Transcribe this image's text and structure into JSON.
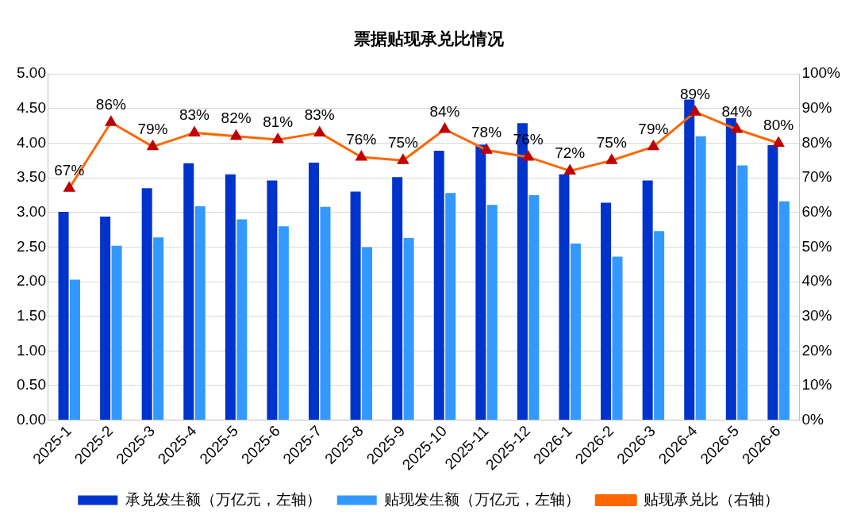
{
  "chart_data": {
    "type": "bar",
    "title": "票据贴现承兑比情况",
    "categories": [
      "2025-1",
      "2025-2",
      "2025-3",
      "2025-4",
      "2025-5",
      "2025-6",
      "2025-7",
      "2025-8",
      "2025-9",
      "2025-10",
      "2025-11",
      "2025-12",
      "2026-1",
      "2026-2",
      "2026-3",
      "2026-4",
      "2026-5",
      "2026-6"
    ],
    "series": [
      {
        "name": "承兑发生额（万亿元，左轴）",
        "color": "#0033cc",
        "values": [
          3.01,
          2.94,
          3.35,
          3.71,
          3.55,
          3.46,
          3.72,
          3.3,
          3.51,
          3.89,
          3.98,
          4.29,
          3.55,
          3.14,
          3.46,
          4.63,
          4.36,
          3.97
        ]
      },
      {
        "name": "贴现发生额（万亿元，左轴）",
        "color": "#3399ff",
        "values": [
          2.03,
          2.52,
          2.64,
          3.09,
          2.9,
          2.8,
          3.08,
          2.5,
          2.63,
          3.28,
          3.11,
          3.25,
          2.55,
          2.36,
          2.73,
          4.1,
          3.68,
          3.16
        ]
      },
      {
        "name": "贴现承兑比（右轴）",
        "type": "line",
        "axis": "y2",
        "color": "#ff6600",
        "marker": "triangle",
        "values": [
          67,
          86,
          79,
          83,
          82,
          81,
          83,
          76,
          75,
          84,
          78,
          76,
          72,
          75,
          79,
          89,
          84,
          80
        ],
        "value_labels": [
          "67%",
          "86%",
          "79%",
          "83%",
          "82%",
          "81%",
          "83%",
          "76%",
          "75%",
          "84%",
          "78%",
          "76%",
          "72%",
          "75%",
          "79%",
          "89%",
          "84%",
          "80%"
        ]
      }
    ],
    "ylim": [
      0,
      5
    ],
    "yticks": [
      {
        "value": 0,
        "label": "0.00"
      },
      {
        "value": 0.5,
        "label": "0.50"
      },
      {
        "value": 1,
        "label": "1.00"
      },
      {
        "value": 1.5,
        "label": "1.50"
      },
      {
        "value": 2,
        "label": "2.00"
      },
      {
        "value": 2.5,
        "label": "2.50"
      },
      {
        "value": 3,
        "label": "3.00"
      },
      {
        "value": 3.5,
        "label": "3.50"
      },
      {
        "value": 4,
        "label": "4.00"
      },
      {
        "value": 4.5,
        "label": "4.50"
      },
      {
        "value": 5,
        "label": "5.00"
      }
    ],
    "y2lim": [
      0,
      100
    ],
    "y2ticks": [
      {
        "value": 0,
        "label": "0%"
      },
      {
        "value": 10,
        "label": "10%"
      },
      {
        "value": 20,
        "label": "20%"
      },
      {
        "value": 30,
        "label": "30%"
      },
      {
        "value": 40,
        "label": "40%"
      },
      {
        "value": 50,
        "label": "50%"
      },
      {
        "value": 60,
        "label": "60%"
      },
      {
        "value": 70,
        "label": "70%"
      },
      {
        "value": 80,
        "label": "80%"
      },
      {
        "value": 90,
        "label": "90%"
      },
      {
        "value": 100,
        "label": "100%"
      }
    ],
    "grid": "y",
    "legend": "bottom"
  }
}
